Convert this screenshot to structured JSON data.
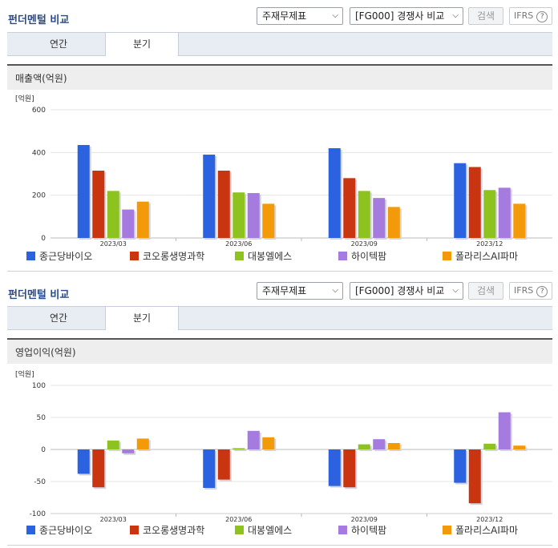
{
  "panels": [
    {
      "title": "펀더멘털 비교",
      "select1": "주재무제표",
      "select2": "[FG000] 경쟁사 비교",
      "search_label": "검색",
      "ifrs_label": "IFRS",
      "help_label": "?",
      "tabs": [
        "연간",
        "분기"
      ],
      "active_tab": "분기",
      "chart_title": "매출액(억원)"
    },
    {
      "title": "펀더멘털 비교",
      "select1": "주재무제표",
      "select2": "[FG000] 경쟁사 비교",
      "search_label": "검색",
      "ifrs_label": "IFRS",
      "help_label": "?",
      "tabs": [
        "연간",
        "분기"
      ],
      "active_tab": "분기",
      "chart_title": "영업이익(억원)"
    }
  ],
  "colors": {
    "종근당바이오": "#2a62e0",
    "코오롱생명과학": "#c93510",
    "대봉엘에스": "#8dc21f",
    "하이텍팜": "#a57be0",
    "폴라리스AI파마": "#f39a0a"
  },
  "chart_data": [
    {
      "type": "bar",
      "unit": "[억원]",
      "categories": [
        "2023/03",
        "2023/06",
        "2023/09",
        "2023/12"
      ],
      "ylim": [
        0,
        600
      ],
      "yticks": [
        0,
        200,
        400,
        600
      ],
      "series": [
        {
          "name": "종근당바이오",
          "values": [
            435,
            390,
            420,
            350
          ]
        },
        {
          "name": "코오롱생명과학",
          "values": [
            315,
            315,
            280,
            332
          ]
        },
        {
          "name": "대봉엘에스",
          "values": [
            220,
            213,
            220,
            224
          ]
        },
        {
          "name": "하이텍팜",
          "values": [
            133,
            210,
            187,
            235
          ]
        },
        {
          "name": "폴라리스AI파마",
          "values": [
            170,
            160,
            145,
            160
          ]
        }
      ],
      "grid": true,
      "legend": "bottom"
    },
    {
      "type": "bar",
      "unit": "[억원]",
      "categories": [
        "2023/03",
        "2023/06",
        "2023/09",
        "2023/12"
      ],
      "ylim": [
        -100,
        100
      ],
      "yticks": [
        -100,
        -50,
        0,
        50,
        100
      ],
      "series": [
        {
          "name": "종근당바이오",
          "values": [
            -38,
            -60,
            -57,
            -52
          ]
        },
        {
          "name": "코오롱생명과학",
          "values": [
            -59,
            -47,
            -59,
            -84
          ]
        },
        {
          "name": "대봉엘에스",
          "values": [
            14,
            2,
            8,
            9
          ]
        },
        {
          "name": "하이텍팜",
          "values": [
            -6,
            29,
            16,
            58
          ]
        },
        {
          "name": "폴라리스AI파마",
          "values": [
            17,
            19,
            10,
            6
          ]
        }
      ],
      "grid": true,
      "legend": "bottom"
    }
  ]
}
